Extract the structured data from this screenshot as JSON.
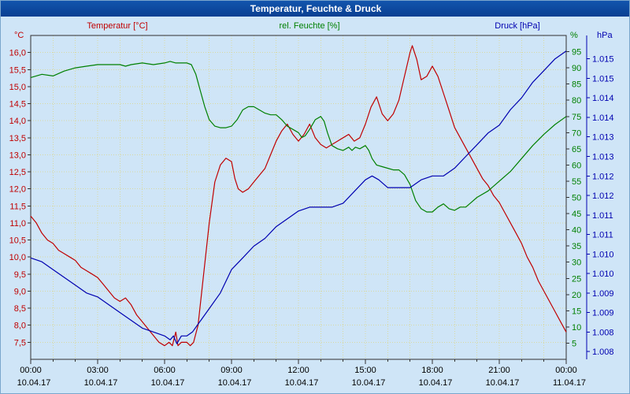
{
  "window": {
    "title": "Temperatur, Feuchte & Druck"
  },
  "colors": {
    "temperature": "#c00000",
    "humidity": "#008000",
    "pressure": "#0000b0",
    "titlebar": "#0a3f92",
    "background": "#cfe5f7",
    "grid": "#d9d9a0",
    "plot_border": "#303030"
  },
  "chart_data": {
    "type": "line",
    "title": "Temperatur, Feuchte & Druck",
    "grid": "dotted, hourly vertical and 0.5°C horizontal",
    "legend_position": "top",
    "legend": [
      {
        "label": "Temperatur [°C]",
        "color": "#c00000"
      },
      {
        "label": "rel. Feuchte [%]",
        "color": "#008000"
      },
      {
        "label": "Druck [hPa]",
        "color": "#0000b0"
      }
    ],
    "axes": {
      "x": {
        "range_hours": [
          0,
          24
        ],
        "tick_hours": [
          0,
          3,
          6,
          9,
          12,
          15,
          18,
          21,
          24
        ],
        "tick_labels": [
          "00:00",
          "03:00",
          "06:00",
          "09:00",
          "12:00",
          "15:00",
          "18:00",
          "21:00",
          "00:00"
        ],
        "date_labels": [
          "10.04.17",
          "10.04.17",
          "10.04.17",
          "10.04.17",
          "10.04.17",
          "10.04.17",
          "10.04.17",
          "10.04.17",
          "11.04.17"
        ]
      },
      "temp": {
        "unit": "°C",
        "min": 7.0,
        "max": 16.5,
        "tick_values": [
          16.0,
          15.5,
          15.0,
          14.5,
          14.0,
          13.5,
          13.0,
          12.5,
          12.0,
          11.5,
          11.0,
          10.5,
          10.0,
          9.5,
          9.0,
          8.5,
          8.0,
          7.5
        ],
        "tick_labels": [
          "16,0",
          "15,5",
          "15,0",
          "14,5",
          "14,0",
          "13,5",
          "13,0",
          "12,5",
          "12,0",
          "11,5",
          "11,0",
          "10,5",
          "10,0",
          "9,5",
          "9,0",
          "8,5",
          "8,0",
          "7,5"
        ],
        "color": "#c00000"
      },
      "humidity": {
        "unit": "%",
        "min": 0,
        "max": 100,
        "tick_values": [
          95,
          90,
          85,
          80,
          75,
          70,
          65,
          60,
          55,
          50,
          45,
          40,
          35,
          30,
          25,
          20,
          15,
          10,
          5
        ],
        "color": "#008000"
      },
      "pressure": {
        "unit": "hPa",
        "min": 1.0073,
        "max": 1.0156,
        "tick_values": [
          1.015,
          1.0145,
          1.014,
          1.0135,
          1.013,
          1.0125,
          1.012,
          1.0115,
          1.011,
          1.0105,
          1.01,
          1.0095,
          1.009,
          1.0085,
          1.008,
          1.0075
        ],
        "tick_labels": [
          "1.015",
          "1.015",
          "1.014",
          "1.014",
          "1.013",
          "1.013",
          "1.012",
          "1.012",
          "1.011",
          "1.011",
          "1.010",
          "1.010",
          "1.009",
          "1.009",
          "1.008",
          "1.008"
        ],
        "color": "#0000b0"
      }
    },
    "series": [
      {
        "name": "Temperatur",
        "slug": "temperature-line",
        "axis": "temp",
        "unit": "°C",
        "color": "#c00000",
        "points": [
          [
            0,
            11.2
          ],
          [
            0.25,
            11.0
          ],
          [
            0.5,
            10.7
          ],
          [
            0.75,
            10.5
          ],
          [
            1,
            10.4
          ],
          [
            1.25,
            10.2
          ],
          [
            1.5,
            10.1
          ],
          [
            1.75,
            10.0
          ],
          [
            2,
            9.9
          ],
          [
            2.25,
            9.7
          ],
          [
            2.5,
            9.6
          ],
          [
            2.75,
            9.5
          ],
          [
            3,
            9.4
          ],
          [
            3.25,
            9.2
          ],
          [
            3.5,
            9.0
          ],
          [
            3.75,
            8.8
          ],
          [
            4,
            8.7
          ],
          [
            4.25,
            8.8
          ],
          [
            4.5,
            8.6
          ],
          [
            4.75,
            8.3
          ],
          [
            5,
            8.1
          ],
          [
            5.25,
            7.9
          ],
          [
            5.5,
            7.7
          ],
          [
            5.75,
            7.5
          ],
          [
            6,
            7.4
          ],
          [
            6.2,
            7.5
          ],
          [
            6.35,
            7.4
          ],
          [
            6.5,
            7.8
          ],
          [
            6.6,
            7.4
          ],
          [
            6.75,
            7.5
          ],
          [
            7,
            7.5
          ],
          [
            7.15,
            7.4
          ],
          [
            7.3,
            7.5
          ],
          [
            7.5,
            8.0
          ],
          [
            7.75,
            9.5
          ],
          [
            8,
            11.0
          ],
          [
            8.25,
            12.2
          ],
          [
            8.5,
            12.7
          ],
          [
            8.75,
            12.9
          ],
          [
            9,
            12.8
          ],
          [
            9.15,
            12.3
          ],
          [
            9.3,
            12.0
          ],
          [
            9.5,
            11.9
          ],
          [
            9.75,
            12.0
          ],
          [
            10,
            12.2
          ],
          [
            10.25,
            12.4
          ],
          [
            10.5,
            12.6
          ],
          [
            10.75,
            13.0
          ],
          [
            11,
            13.4
          ],
          [
            11.25,
            13.7
          ],
          [
            11.5,
            13.9
          ],
          [
            11.75,
            13.6
          ],
          [
            12,
            13.4
          ],
          [
            12.25,
            13.6
          ],
          [
            12.5,
            13.9
          ],
          [
            12.75,
            13.5
          ],
          [
            13,
            13.3
          ],
          [
            13.25,
            13.2
          ],
          [
            13.5,
            13.3
          ],
          [
            13.75,
            13.4
          ],
          [
            14,
            13.5
          ],
          [
            14.25,
            13.6
          ],
          [
            14.5,
            13.4
          ],
          [
            14.75,
            13.5
          ],
          [
            15,
            13.9
          ],
          [
            15.25,
            14.4
          ],
          [
            15.5,
            14.7
          ],
          [
            15.75,
            14.2
          ],
          [
            16,
            14.0
          ],
          [
            16.25,
            14.2
          ],
          [
            16.5,
            14.6
          ],
          [
            16.75,
            15.3
          ],
          [
            17,
            16.0
          ],
          [
            17.1,
            16.2
          ],
          [
            17.3,
            15.8
          ],
          [
            17.5,
            15.2
          ],
          [
            17.75,
            15.3
          ],
          [
            18,
            15.6
          ],
          [
            18.25,
            15.3
          ],
          [
            18.5,
            14.8
          ],
          [
            18.75,
            14.3
          ],
          [
            19,
            13.8
          ],
          [
            19.25,
            13.5
          ],
          [
            19.5,
            13.2
          ],
          [
            19.75,
            12.9
          ],
          [
            20,
            12.6
          ],
          [
            20.25,
            12.3
          ],
          [
            20.5,
            12.1
          ],
          [
            20.75,
            11.8
          ],
          [
            21,
            11.6
          ],
          [
            21.25,
            11.3
          ],
          [
            21.5,
            11.0
          ],
          [
            21.75,
            10.7
          ],
          [
            22,
            10.4
          ],
          [
            22.25,
            10.0
          ],
          [
            22.5,
            9.7
          ],
          [
            22.75,
            9.3
          ],
          [
            23,
            9.0
          ],
          [
            23.25,
            8.7
          ],
          [
            23.5,
            8.4
          ],
          [
            23.75,
            8.1
          ],
          [
            24,
            7.8
          ]
        ]
      },
      {
        "name": "rel. Feuchte",
        "slug": "humidity-line",
        "axis": "humidity",
        "unit": "%",
        "color": "#008000",
        "points": [
          [
            0,
            87
          ],
          [
            0.5,
            88
          ],
          [
            1,
            87.5
          ],
          [
            1.5,
            89
          ],
          [
            2,
            90
          ],
          [
            2.5,
            90.5
          ],
          [
            3,
            91
          ],
          [
            3.5,
            91
          ],
          [
            4,
            91
          ],
          [
            4.25,
            90.5
          ],
          [
            4.5,
            91
          ],
          [
            5,
            91.5
          ],
          [
            5.5,
            91
          ],
          [
            6,
            91.5
          ],
          [
            6.25,
            92
          ],
          [
            6.5,
            91.5
          ],
          [
            7,
            91.5
          ],
          [
            7.2,
            91
          ],
          [
            7.4,
            88
          ],
          [
            7.6,
            83
          ],
          [
            7.8,
            78
          ],
          [
            8,
            74
          ],
          [
            8.25,
            72
          ],
          [
            8.5,
            71.5
          ],
          [
            8.75,
            71.5
          ],
          [
            9,
            72
          ],
          [
            9.25,
            74
          ],
          [
            9.5,
            77
          ],
          [
            9.75,
            78
          ],
          [
            10,
            78
          ],
          [
            10.25,
            77
          ],
          [
            10.5,
            76
          ],
          [
            10.75,
            75.5
          ],
          [
            11,
            75.5
          ],
          [
            11.25,
            74
          ],
          [
            11.5,
            72
          ],
          [
            11.75,
            71
          ],
          [
            12,
            70
          ],
          [
            12.15,
            68.5
          ],
          [
            12.3,
            69
          ],
          [
            12.5,
            71
          ],
          [
            12.75,
            74
          ],
          [
            13,
            75
          ],
          [
            13.15,
            73.5
          ],
          [
            13.3,
            70
          ],
          [
            13.5,
            66
          ],
          [
            13.75,
            65
          ],
          [
            14,
            64.5
          ],
          [
            14.25,
            65.5
          ],
          [
            14.4,
            64.5
          ],
          [
            14.55,
            65.5
          ],
          [
            14.75,
            65
          ],
          [
            15,
            66
          ],
          [
            15.15,
            64.5
          ],
          [
            15.3,
            62
          ],
          [
            15.5,
            60
          ],
          [
            15.75,
            59.5
          ],
          [
            16,
            59
          ],
          [
            16.25,
            58.5
          ],
          [
            16.5,
            58.5
          ],
          [
            16.75,
            57
          ],
          [
            17,
            54
          ],
          [
            17.25,
            49
          ],
          [
            17.5,
            46.5
          ],
          [
            17.75,
            45.5
          ],
          [
            18,
            45.5
          ],
          [
            18.25,
            47
          ],
          [
            18.5,
            48
          ],
          [
            18.75,
            46.5
          ],
          [
            19,
            46
          ],
          [
            19.25,
            47
          ],
          [
            19.5,
            47
          ],
          [
            19.75,
            48.5
          ],
          [
            20,
            50
          ],
          [
            20.5,
            52
          ],
          [
            21,
            55
          ],
          [
            21.5,
            58
          ],
          [
            22,
            62
          ],
          [
            22.5,
            66
          ],
          [
            23,
            69.5
          ],
          [
            23.5,
            72.5
          ],
          [
            24,
            75
          ]
        ]
      },
      {
        "name": "Druck",
        "slug": "pressure-line",
        "axis": "pressure",
        "unit": "hPa",
        "color": "#0000b0",
        "points": [
          [
            0,
            1.0099
          ],
          [
            0.5,
            1.0098
          ],
          [
            1,
            1.0096
          ],
          [
            1.5,
            1.0094
          ],
          [
            2,
            1.0092
          ],
          [
            2.5,
            1.009
          ],
          [
            3,
            1.0089
          ],
          [
            3.5,
            1.0087
          ],
          [
            4,
            1.0085
          ],
          [
            4.5,
            1.0083
          ],
          [
            5,
            1.0081
          ],
          [
            5.5,
            1.008
          ],
          [
            6,
            1.0079
          ],
          [
            6.25,
            1.0078
          ],
          [
            6.4,
            1.0079
          ],
          [
            6.55,
            1.0077
          ],
          [
            6.75,
            1.0079
          ],
          [
            7,
            1.0079
          ],
          [
            7.25,
            1.008
          ],
          [
            7.5,
            1.0082
          ],
          [
            8,
            1.0086
          ],
          [
            8.5,
            1.009
          ],
          [
            9,
            1.0096
          ],
          [
            9.5,
            1.0099
          ],
          [
            10,
            1.0102
          ],
          [
            10.5,
            1.0104
          ],
          [
            11,
            1.0107
          ],
          [
            11.5,
            1.0109
          ],
          [
            12,
            1.0111
          ],
          [
            12.5,
            1.0112
          ],
          [
            13,
            1.0112
          ],
          [
            13.5,
            1.0112
          ],
          [
            14,
            1.0113
          ],
          [
            14.5,
            1.0116
          ],
          [
            15,
            1.0119
          ],
          [
            15.3,
            1.012
          ],
          [
            15.6,
            1.0119
          ],
          [
            16,
            1.0117
          ],
          [
            16.5,
            1.0117
          ],
          [
            17,
            1.0117
          ],
          [
            17.5,
            1.0119
          ],
          [
            18,
            1.012
          ],
          [
            18.5,
            1.012
          ],
          [
            19,
            1.0122
          ],
          [
            19.5,
            1.0125
          ],
          [
            20,
            1.0128
          ],
          [
            20.5,
            1.0131
          ],
          [
            21,
            1.0133
          ],
          [
            21.5,
            1.0137
          ],
          [
            22,
            1.014
          ],
          [
            22.5,
            1.0144
          ],
          [
            23,
            1.0147
          ],
          [
            23.5,
            1.015
          ],
          [
            24,
            1.0152
          ]
        ]
      }
    ]
  }
}
